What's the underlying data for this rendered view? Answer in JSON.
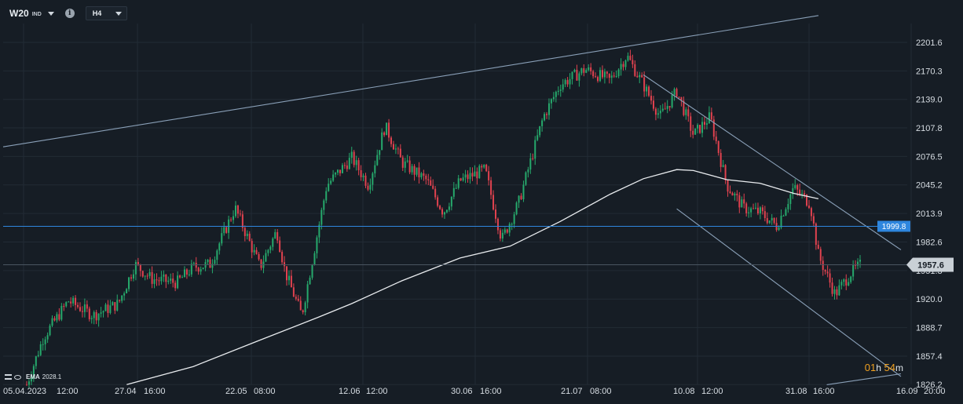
{
  "header": {
    "symbol": "W20",
    "market": "IND",
    "info_icon": "info-icon",
    "timeframe": "H4"
  },
  "indicator": {
    "label": "EMA",
    "value": "2028.1",
    "icons": [
      "settings-lines-icon",
      "visibility-eye-icon"
    ]
  },
  "countdown": {
    "hours": "01",
    "hours_unit": "h",
    "minutes": "54",
    "minutes_unit": "m"
  },
  "colors": {
    "background": "#161d25",
    "grid": "#222b35",
    "up": "#26a96c",
    "down": "#e0424f",
    "ema": "#e9ecef",
    "trendline": "#8aa0b8",
    "hline": "#2e86de",
    "axis_text": "#d7dde3"
  },
  "chart_data": {
    "type": "candlestick",
    "y_ticks": [
      "2201.6",
      "2170.3",
      "2139.0",
      "2107.8",
      "2076.5",
      "2045.2",
      "2013.9",
      "1982.6",
      "1951.3",
      "1920.0",
      "1888.7",
      "1857.4",
      "1826.2"
    ],
    "x_ticks": [
      "05.04.2023",
      "12:00",
      "27.04",
      "16:00",
      "22.05",
      "08:00",
      "12.06",
      "12:00",
      "30.06",
      "16:00",
      "21.07",
      "08:00",
      "10.08",
      "12:00",
      "31.08",
      "16:00",
      "16.09",
      "20:00"
    ],
    "ylim": [
      1826.2,
      2201.6
    ],
    "horizontal_line": {
      "value": 1999.8,
      "label": "1999.8"
    },
    "current_price": {
      "value": 1957.6,
      "label": "1957.6"
    },
    "ema_period_label": "EMA",
    "ema_last": 2028.1,
    "ema_anchors": [
      [
        0.12,
        1826.2
      ],
      [
        0.2,
        1846
      ],
      [
        0.28,
        1875
      ],
      [
        0.35,
        1900
      ],
      [
        0.39,
        1915
      ],
      [
        0.45,
        1940
      ],
      [
        0.52,
        1965
      ],
      [
        0.58,
        1978
      ],
      [
        0.64,
        2005
      ],
      [
        0.7,
        2035
      ],
      [
        0.74,
        2052
      ],
      [
        0.78,
        2062
      ],
      [
        0.8,
        2061
      ],
      [
        0.84,
        2051
      ],
      [
        0.88,
        2047
      ],
      [
        0.92,
        2036
      ],
      [
        0.95,
        2030
      ]
    ],
    "candle_anchors": [
      [
        0.0,
        1826
      ],
      [
        0.02,
        1878
      ],
      [
        0.05,
        1918
      ],
      [
        0.08,
        1902
      ],
      [
        0.11,
        1915
      ],
      [
        0.13,
        1958
      ],
      [
        0.15,
        1942
      ],
      [
        0.18,
        1938
      ],
      [
        0.2,
        1955
      ],
      [
        0.22,
        1958
      ],
      [
        0.25,
        2020
      ],
      [
        0.28,
        1955
      ],
      [
        0.3,
        1995
      ],
      [
        0.31,
        1950
      ],
      [
        0.33,
        1902
      ],
      [
        0.34,
        1950
      ],
      [
        0.36,
        2045
      ],
      [
        0.39,
        2075
      ],
      [
        0.41,
        2045
      ],
      [
        0.43,
        2110
      ],
      [
        0.45,
        2070
      ],
      [
        0.48,
        2050
      ],
      [
        0.5,
        2015
      ],
      [
        0.52,
        2050
      ],
      [
        0.55,
        2062
      ],
      [
        0.57,
        1985
      ],
      [
        0.59,
        2025
      ],
      [
        0.62,
        2120
      ],
      [
        0.64,
        2155
      ],
      [
        0.67,
        2172
      ],
      [
        0.7,
        2160
      ],
      [
        0.72,
        2187
      ],
      [
        0.74,
        2155
      ],
      [
        0.76,
        2120
      ],
      [
        0.78,
        2148
      ],
      [
        0.8,
        2100
      ],
      [
        0.82,
        2120
      ],
      [
        0.84,
        2045
      ],
      [
        0.86,
        2020
      ],
      [
        0.88,
        2015
      ],
      [
        0.9,
        2000
      ],
      [
        0.92,
        2042
      ],
      [
        0.94,
        2025
      ],
      [
        0.95,
        1968
      ],
      [
        0.97,
        1925
      ],
      [
        0.99,
        1950
      ],
      [
        1.0,
        1957
      ]
    ],
    "trendlines": [
      {
        "from": [
          0.0,
          2087
        ],
        "to": [
          0.95,
          2231
        ]
      },
      {
        "from": [
          0.74,
          2166
        ],
        "to": [
          1.0,
          1974
        ]
      },
      {
        "from": [
          0.78,
          2019
        ],
        "to": [
          1.0,
          1835
        ]
      },
      {
        "from": [
          0.96,
          1826
        ],
        "to": [
          1.0,
          1838
        ]
      }
    ]
  }
}
